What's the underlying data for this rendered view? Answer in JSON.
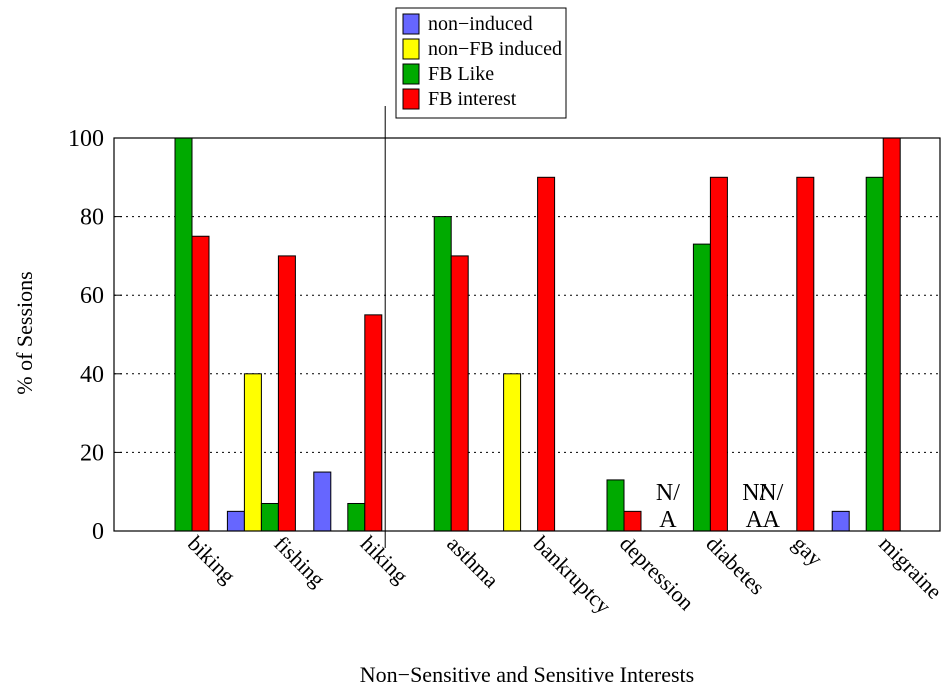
{
  "chart_data": {
    "type": "bar",
    "title": "",
    "xlabel": "Non−Sensitive and Sensitive Interests",
    "ylabel": "% of Sessions",
    "ylim": [
      0,
      100
    ],
    "yticks": [
      "0",
      "20",
      "40",
      "60",
      "80",
      "100"
    ],
    "grid": "horizontal dotted",
    "legend_position": "top-center",
    "categories": [
      "biking",
      "fishing",
      "hiking",
      "asthma",
      "bankruptcy",
      "depression",
      "diabetes",
      "gay",
      "migraine"
    ],
    "divider_after": "hiking",
    "series": [
      {
        "name": "non−induced",
        "color": "#6666ff",
        "values": [
          0,
          5,
          15,
          0,
          0,
          0,
          null,
          null,
          5
        ]
      },
      {
        "name": "non−FB induced",
        "color": "#ffff00",
        "values": [
          0,
          40,
          0,
          0,
          40,
          0,
          null,
          null,
          0
        ]
      },
      {
        "name": "FB Like",
        "color": "#00aa00",
        "values": [
          100,
          7,
          7,
          80,
          0,
          13,
          73,
          null,
          90
        ]
      },
      {
        "name": "FB interest",
        "color": "#ff0000",
        "values": [
          75,
          70,
          55,
          70,
          90,
          5,
          90,
          90,
          100
        ]
      }
    ],
    "annotations": [
      {
        "category": "diabetes",
        "series": "non−induced",
        "text": "N/"
      },
      {
        "category": "diabetes",
        "series": "non−induced",
        "text": "A"
      },
      {
        "category": "gay",
        "series": "non−induced",
        "text": "N/"
      },
      {
        "category": "gay",
        "series": "non−induced",
        "text": "A"
      },
      {
        "category": "gay",
        "series": "non−FB induced",
        "text": "N/"
      },
      {
        "category": "gay",
        "series": "non−FB induced",
        "text": "A"
      }
    ]
  }
}
